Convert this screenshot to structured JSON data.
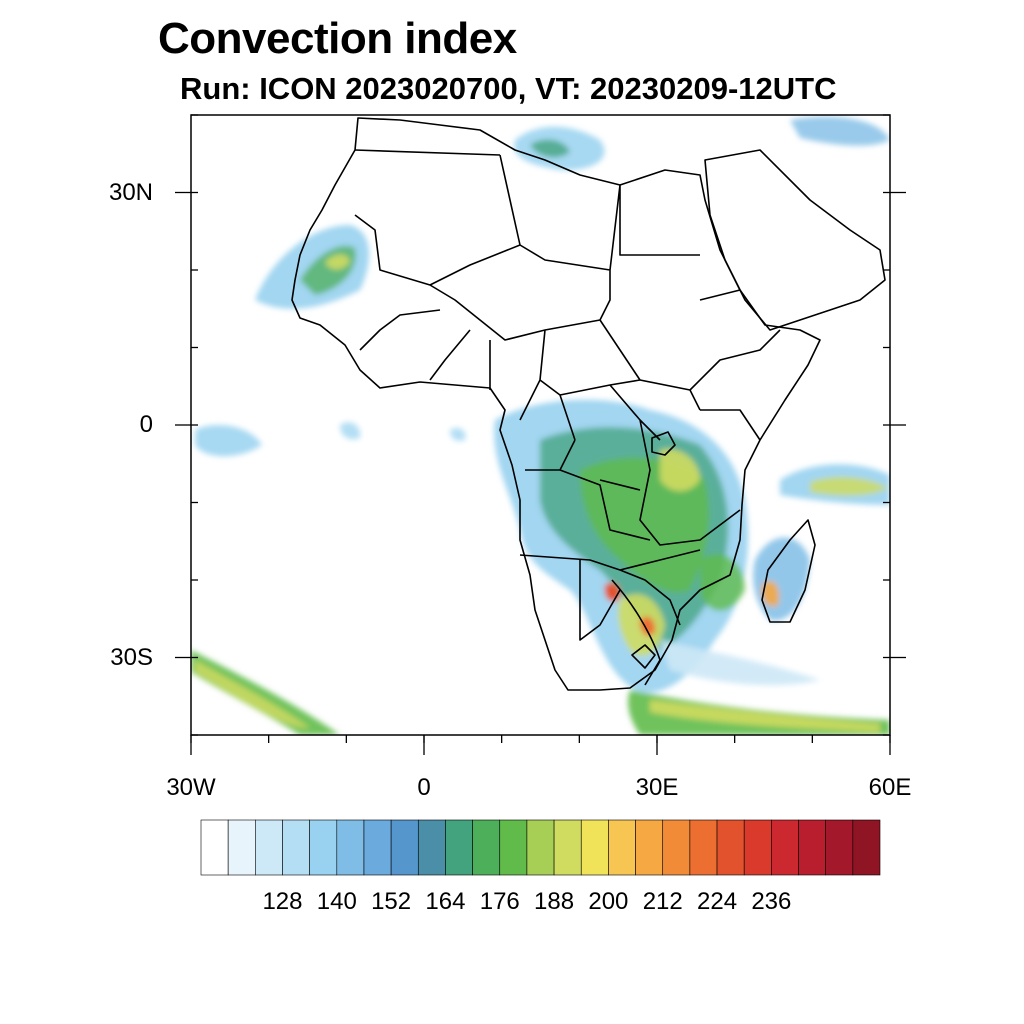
{
  "title": "Convection index",
  "subtitle": "Run: ICON 2023020700,  VT: 20230209-12UTC",
  "map": {
    "lon_range": [
      -30,
      60
    ],
    "lat_range": [
      -40,
      40
    ],
    "lat_ticks": [
      {
        "value": 30,
        "label": "30N"
      },
      {
        "value": 0,
        "label": "0"
      },
      {
        "value": -30,
        "label": "30S"
      }
    ],
    "lon_ticks": [
      {
        "value": -30,
        "label": "30W"
      },
      {
        "value": 0,
        "label": "0"
      },
      {
        "value": 30,
        "label": "30E"
      },
      {
        "value": 60,
        "label": "60E"
      }
    ],
    "land_border_color": "#000000",
    "background_color": "#ffffff"
  },
  "colorbar": {
    "label_values": [
      "128",
      "140",
      "152",
      "164",
      "176",
      "188",
      "200",
      "212",
      "224",
      "236"
    ],
    "colors": [
      "#ffffff",
      "#e8f4fb",
      "#cde8f6",
      "#b3def4",
      "#98d2f0",
      "#7fbde6",
      "#6aaadc",
      "#5596cc",
      "#4a8ea8",
      "#42a37e",
      "#4daf5a",
      "#60bb4a",
      "#a8cf55",
      "#cfdc60",
      "#f0e35a",
      "#f7c652",
      "#f6a942",
      "#f18b38",
      "#ec6e30",
      "#e2522c",
      "#d93a2c",
      "#cc2830",
      "#b81e2e",
      "#a3182b",
      "#8f1424"
    ]
  }
}
